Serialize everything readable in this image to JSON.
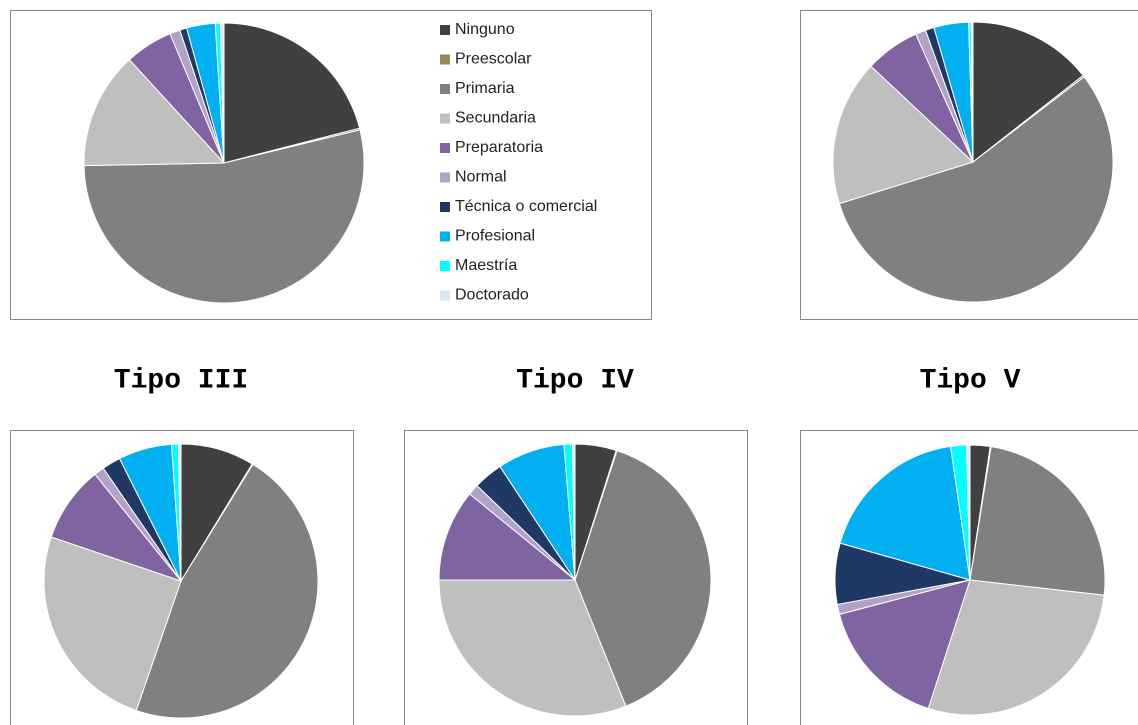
{
  "chart_data": [
    {
      "type": "pie",
      "legend": true,
      "categories": [
        "Ninguno",
        "Preescolar",
        "Primaria",
        "Secundaria",
        "Preparatoria",
        "Normal",
        "Técnica o comercial",
        "Profesional",
        "Maestría",
        "Doctorado"
      ],
      "values": [
        21,
        0.2,
        53.5,
        13.5,
        5.5,
        1.2,
        0.8,
        3.3,
        0.6,
        0.4
      ],
      "colors": [
        "#404040",
        "#948a54",
        "#808080",
        "#bfbfbf",
        "#8064a2",
        "#b3a2c7",
        "#1f3864",
        "#00b0f0",
        "#00ffff",
        "#dce6f2"
      ]
    },
    {
      "type": "pie",
      "legend": false,
      "categories": [
        "Ninguno",
        "Preescolar",
        "Primaria",
        "Secundaria",
        "Preparatoria",
        "Normal",
        "Técnica o comercial",
        "Profesional",
        "Maestría",
        "Doctorado"
      ],
      "values": [
        14.4,
        0.2,
        55.6,
        16.8,
        6.3,
        1.2,
        1,
        4,
        0.3,
        0.2
      ],
      "colors": [
        "#404040",
        "#948a54",
        "#808080",
        "#bfbfbf",
        "#8064a2",
        "#b3a2c7",
        "#1f3864",
        "#00b0f0",
        "#00ffff",
        "#dce6f2"
      ]
    },
    {
      "type": "pie",
      "title": "Tipo III",
      "legend": false,
      "categories": [
        "Ninguno",
        "Preescolar",
        "Primaria",
        "Secundaria",
        "Preparatoria",
        "Normal",
        "Técnica o comercial",
        "Profesional",
        "Maestría",
        "Doctorado"
      ],
      "values": [
        8.7,
        0.1,
        46.5,
        24.9,
        9,
        1.2,
        2.2,
        6.3,
        0.8,
        0.3
      ],
      "colors": [
        "#404040",
        "#948a54",
        "#808080",
        "#bfbfbf",
        "#8064a2",
        "#b3a2c7",
        "#1f3864",
        "#00b0f0",
        "#00ffff",
        "#dce6f2"
      ]
    },
    {
      "type": "pie",
      "title": "Tipo IV",
      "legend": false,
      "categories": [
        "Ninguno",
        "Preescolar",
        "Primaria",
        "Secundaria",
        "Preparatoria",
        "Normal",
        "Técnica o comercial",
        "Profesional",
        "Maestría",
        "Doctorado"
      ],
      "values": [
        4.9,
        0.1,
        38.9,
        31.1,
        10.9,
        1.3,
        3.5,
        8,
        1,
        0.3
      ],
      "colors": [
        "#404040",
        "#948a54",
        "#808080",
        "#bfbfbf",
        "#8064a2",
        "#b3a2c7",
        "#1f3864",
        "#00b0f0",
        "#00ffff",
        "#dce6f2"
      ]
    },
    {
      "type": "pie",
      "title": "Tipo V",
      "legend": false,
      "categories": [
        "Ninguno",
        "Preescolar",
        "Primaria",
        "Secundaria",
        "Preparatoria",
        "Normal",
        "Técnica o comercial",
        "Profesional",
        "Maestría",
        "Doctorado"
      ],
      "values": [
        2.4,
        0.1,
        24.3,
        28.2,
        15.9,
        1.2,
        7.3,
        18.3,
        1.9,
        0.4
      ],
      "colors": [
        "#404040",
        "#948a54",
        "#808080",
        "#bfbfbf",
        "#8064a2",
        "#b3a2c7",
        "#1f3864",
        "#00b0f0",
        "#00ffff",
        "#dce6f2"
      ]
    }
  ]
}
